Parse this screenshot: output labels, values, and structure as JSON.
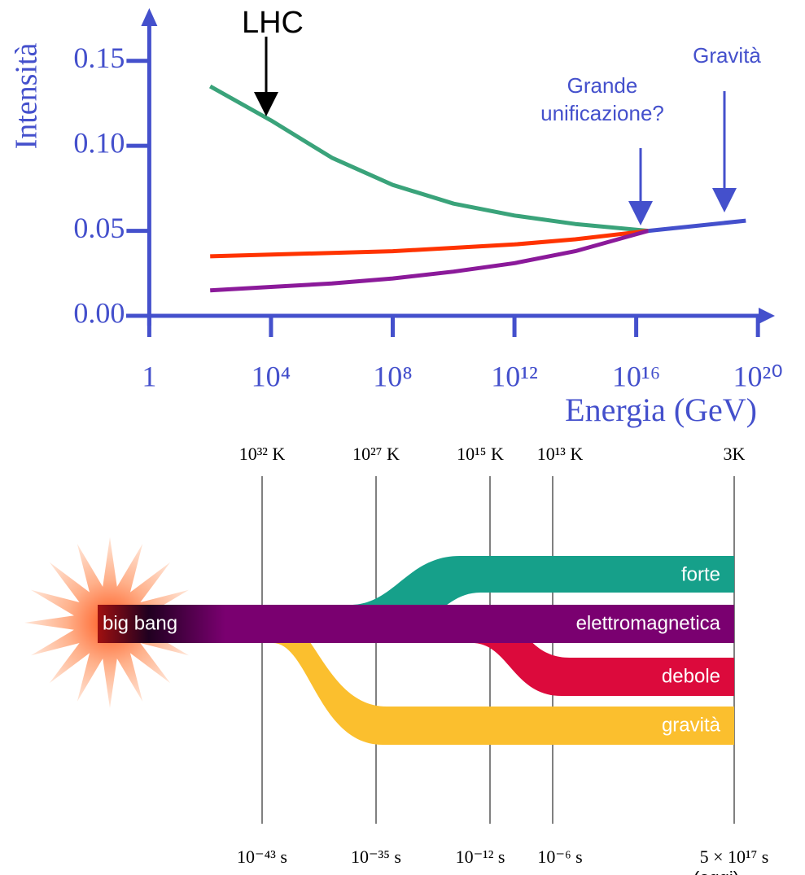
{
  "chart_data": {
    "type": "line",
    "y_label": "Intensità",
    "x_label": "Energia (GeV)",
    "x": [
      100,
      10000,
      1000000,
      100000000,
      10000000000,
      1000000000000,
      100000000000000,
      25000000000000000,
      40000000000000000000
    ],
    "series": [
      {
        "color": "#3aa37a",
        "values": [
          0.135,
          0.115,
          0.093,
          0.077,
          0.066,
          0.059,
          0.054,
          0.05,
          null
        ]
      },
      {
        "color": "#ff3300",
        "values": [
          0.035,
          0.036,
          0.037,
          0.038,
          0.04,
          0.042,
          0.045,
          0.05,
          null
        ]
      },
      {
        "color": "#8b1a9a",
        "values": [
          0.015,
          0.017,
          0.019,
          0.022,
          0.026,
          0.031,
          0.038,
          0.05,
          null
        ]
      },
      {
        "color": "#4450cc",
        "values": [
          null,
          null,
          null,
          null,
          null,
          null,
          null,
          0.05,
          0.056
        ]
      }
    ],
    "xscale": "log",
    "xlim": [
      0.1,
      300000000000000000000
    ],
    "xticks": [
      1,
      {
        "value": 10000,
        "label": "10⁴"
      },
      {
        "value": 100000000,
        "label": "10⁸"
      },
      {
        "value": 1000000000000,
        "label": "10¹²"
      },
      {
        "value": 10000000000000000,
        "label": "10¹⁶"
      },
      {
        "value": 100000000000000000000,
        "label": "10²⁰"
      }
    ],
    "ylim": [
      0,
      0.17
    ],
    "yticks": [
      {
        "value": 0,
        "label": "0.00"
      },
      {
        "value": 0.05,
        "label": "0.05"
      },
      {
        "value": 0.1,
        "label": "0.10"
      },
      {
        "value": 0.15,
        "label": "0.15"
      }
    ],
    "axis_color": "#4450cc",
    "annotations": [
      "LHC",
      "Grande unificazione?",
      "Gravità"
    ]
  },
  "diagram": {
    "temperatures": [
      "10³² K",
      "10²⁷ K",
      "10¹⁵ K",
      "10¹³ K",
      "3K"
    ],
    "times": [
      "10⁻⁴³ s",
      "10⁻³⁵ s",
      "10⁻¹² s",
      "10⁻⁶ s",
      "5 × 10¹⁷ s"
    ],
    "today": "(oggi)",
    "origin": "big bang",
    "bands": [
      "forte",
      "elettromagnetica",
      "debole",
      "gravità"
    ]
  }
}
